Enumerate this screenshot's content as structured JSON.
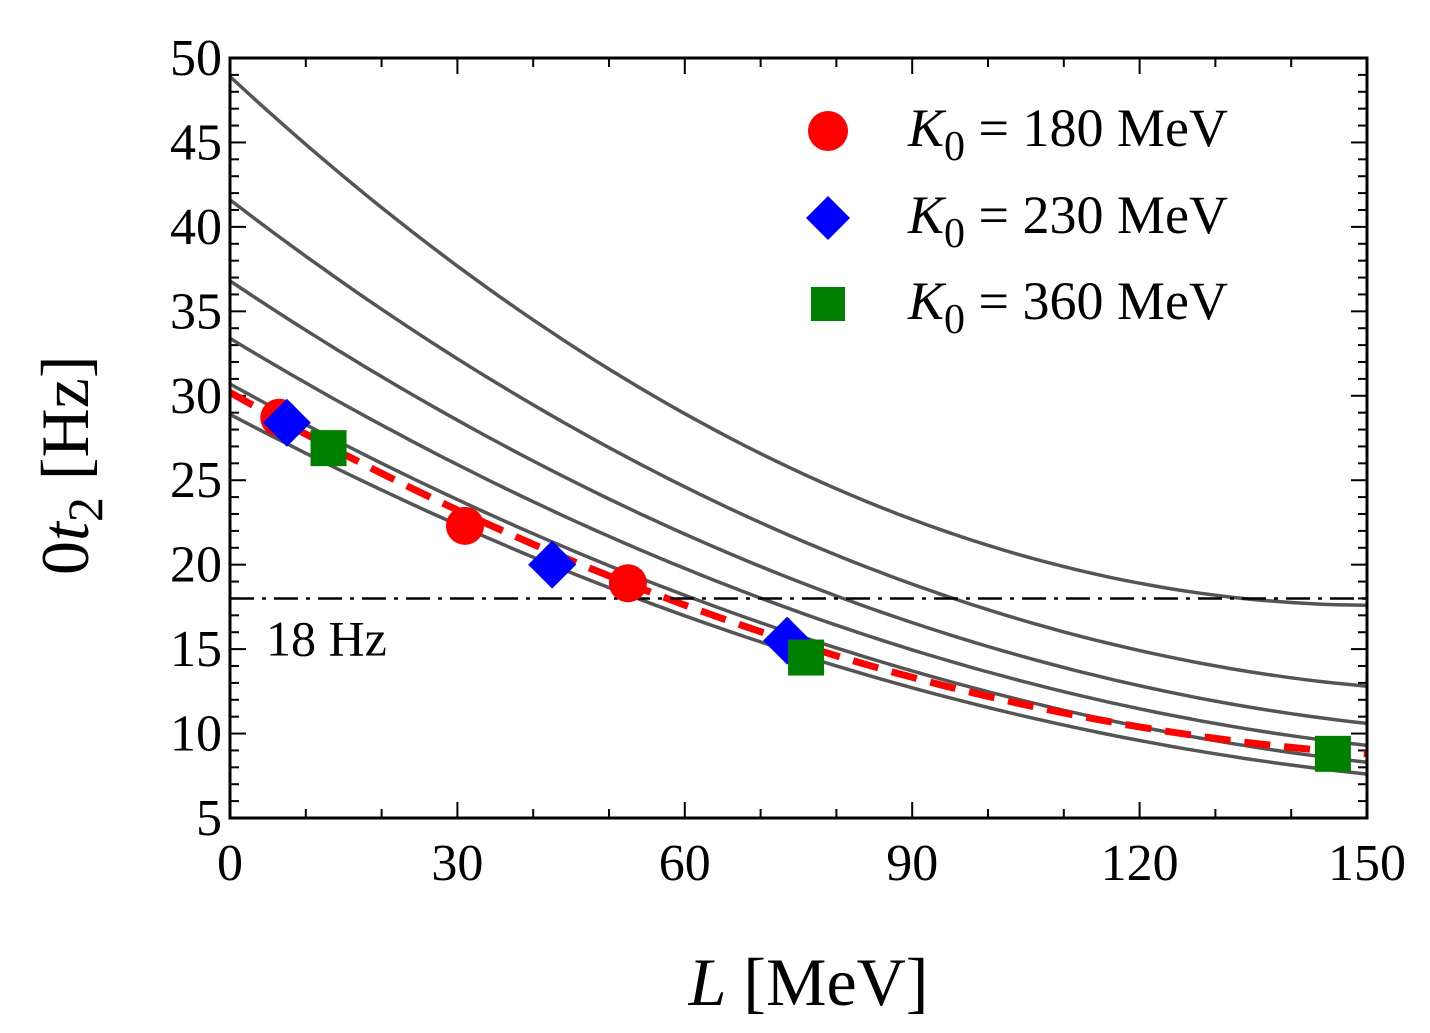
{
  "chart_data": {
    "type": "line",
    "title": "",
    "xlabel": {
      "var": "L",
      "unit": " [MeV]"
    },
    "ylabel": {
      "pre": "0",
      "var": "t",
      "sub": "2",
      "unit": " [Hz]"
    },
    "xlim": [
      0,
      150
    ],
    "ylim": [
      5,
      50
    ],
    "xticks": [
      0,
      30,
      60,
      90,
      120,
      150
    ],
    "yticks": [
      5,
      10,
      15,
      20,
      25,
      30,
      35,
      40,
      45,
      50
    ],
    "grid": false,
    "legend_position": "top-right",
    "reference_line": {
      "y": 18,
      "label": "18 Hz",
      "style": "dash-dot"
    },
    "gray_curves": [
      {
        "name": "curve-1",
        "color": "#555555",
        "y0": 48.9,
        "y75": 25.5,
        "y150": 17.6
      },
      {
        "name": "curve-2",
        "color": "#555555",
        "y0": 41.6,
        "y75": 21.5,
        "y150": 12.8
      },
      {
        "name": "curve-3",
        "color": "#555555",
        "y0": 36.8,
        "y75": 19.0,
        "y150": 10.6
      },
      {
        "name": "curve-4",
        "color": "#555555",
        "y0": 33.4,
        "y75": 17.2,
        "y150": 9.3
      },
      {
        "name": "curve-5",
        "color": "#555555",
        "y0": 30.7,
        "y75": 15.8,
        "y150": 8.3
      },
      {
        "name": "curve-6",
        "color": "#555555",
        "y0": 28.9,
        "y75": 14.7,
        "y150": 7.6
      }
    ],
    "fit_line": {
      "name": "fit",
      "color": "#ff0000",
      "style": "dashed",
      "y0": 30.2,
      "y75": 15.3,
      "y150": 8.8
    },
    "series": [
      {
        "name": "K_0 = 180 MeV",
        "legend_var": "K",
        "legend_sub": "0",
        "legend_rest": " = 180 MeV",
        "marker": "circle",
        "color": "#ff0000",
        "x": [
          6.5,
          31,
          52.5
        ],
        "y": [
          28.7,
          22.3,
          18.9
        ]
      },
      {
        "name": "K_0 = 230 MeV",
        "legend_var": "K",
        "legend_sub": "0",
        "legend_rest": " = 230 MeV",
        "marker": "diamond",
        "color": "#0000ff",
        "x": [
          7.5,
          42.5,
          73.5
        ],
        "y": [
          28.4,
          20.0,
          15.5
        ]
      },
      {
        "name": "K_0 = 360 MeV",
        "legend_var": "K",
        "legend_sub": "0",
        "legend_rest": " = 360 MeV",
        "marker": "square",
        "color": "#008000",
        "x": [
          13,
          76,
          145.5
        ],
        "y": [
          26.9,
          14.5,
          8.8
        ]
      }
    ]
  }
}
